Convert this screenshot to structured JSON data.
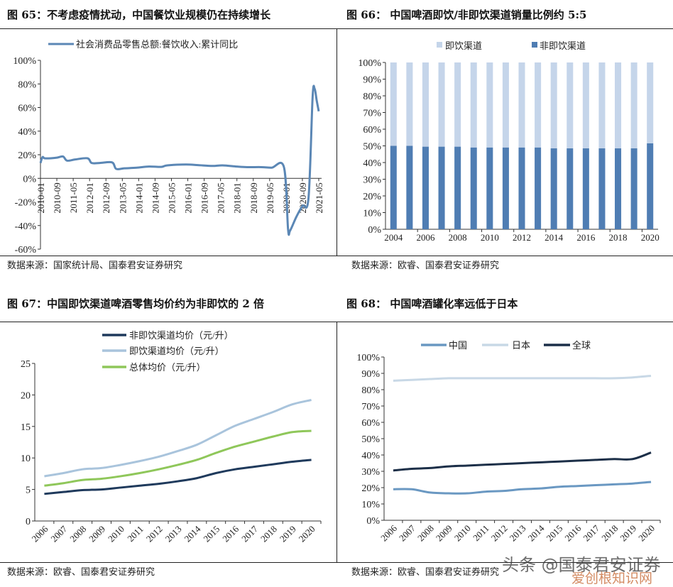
{
  "figures": [
    {
      "title": "图 65：不考虑疫情扰动，中国餐饮业规模仍在持续增长",
      "source": "数据来源：国家统计局、国泰君安证券研究"
    },
    {
      "title": "图 66：  中国啤酒即饮/非即饮渠道销量比例约 5:5",
      "source": "数据来源：欧睿、国泰君安证券研究"
    },
    {
      "title": "图 67：中国即饮渠道啤酒零售均价约为非即饮的 2 倍",
      "source": "数据来源：欧睿、国泰君安证券研究"
    },
    {
      "title": "图 68：  中国啤酒罐化率远低于日本",
      "source": "数据来源：欧睿、国泰君安证券研究"
    }
  ],
  "watermark": {
    "line1": "头条 @国泰君安证券",
    "line2": "爱创根知识网"
  },
  "chart_data": [
    {
      "type": "line",
      "ylabel": "",
      "xlabel": "",
      "ylim": [
        -60,
        100
      ],
      "yticks": [
        "100%",
        "80%",
        "60%",
        "40%",
        "20%",
        "0%",
        "-20%",
        "-40%",
        "-60%"
      ],
      "xticks": [
        "2010-01",
        "2010-09",
        "2011-05",
        "2012-01",
        "2012-09",
        "2013-05",
        "2014-01",
        "2014-09",
        "2015-05",
        "2016-01",
        "2016-09",
        "2017-05",
        "2018-01",
        "2018-09",
        "2019-05",
        "2020-01",
        "2020-09",
        "2021-05"
      ],
      "series": [
        {
          "name": "社会消费品零售总额:餐饮收入:累计同比",
          "color": "#5b87b5",
          "points": [
            [
              "2010-01",
              13
            ],
            [
              "2010-02",
              18
            ],
            [
              "2010-03",
              17
            ],
            [
              "2010-06",
              17
            ],
            [
              "2010-09",
              17.5
            ],
            [
              "2010-12",
              18.5
            ],
            [
              "2011-02",
              15
            ],
            [
              "2011-06",
              16
            ],
            [
              "2011-12",
              17
            ],
            [
              "2012-02",
              13
            ],
            [
              "2012-06",
              13
            ],
            [
              "2012-12",
              13.5
            ],
            [
              "2013-02",
              8
            ],
            [
              "2013-06",
              8.5
            ],
            [
              "2013-12",
              9
            ],
            [
              "2014-06",
              10
            ],
            [
              "2014-12",
              9.7
            ],
            [
              "2015-03",
              11
            ],
            [
              "2015-12",
              11.7
            ],
            [
              "2016-06",
              11.2
            ],
            [
              "2017-01",
              10.5
            ],
            [
              "2017-06",
              11
            ],
            [
              "2018-01",
              10
            ],
            [
              "2018-06",
              9.5
            ],
            [
              "2019-01",
              9.5
            ],
            [
              "2019-06",
              9
            ],
            [
              "2019-12",
              9.4
            ],
            [
              "2020-02",
              -43.1
            ],
            [
              "2020-03",
              -44.3
            ],
            [
              "2020-06",
              -32.8
            ],
            [
              "2020-09",
              -23.4
            ],
            [
              "2020-12",
              -16.6
            ],
            [
              "2021-02",
              68.9
            ],
            [
              "2021-03",
              75.9
            ],
            [
              "2021-04",
              65.9
            ],
            [
              "2021-05",
              56.8
            ]
          ]
        }
      ]
    },
    {
      "type": "bar",
      "stacked": true,
      "ylim": [
        0,
        100
      ],
      "yticks": [
        "100%",
        "90%",
        "80%",
        "70%",
        "60%",
        "50%",
        "40%",
        "30%",
        "20%",
        "10%",
        "0%"
      ],
      "categories": [
        "2004",
        "2005",
        "2006",
        "2007",
        "2008",
        "2009",
        "2010",
        "2011",
        "2012",
        "2013",
        "2014",
        "2015",
        "2016",
        "2017",
        "2018",
        "2019",
        "2020"
      ],
      "xtick_labels": [
        "2004",
        "2006",
        "2008",
        "2010",
        "2012",
        "2014",
        "2016",
        "2018",
        "2020"
      ],
      "series": [
        {
          "name": "非即饮渠道",
          "color": "#4f7db3",
          "values": [
            50,
            50,
            49.5,
            49.5,
            49.5,
            49,
            49,
            49,
            49,
            49,
            48.5,
            48.5,
            48.5,
            48.5,
            48.5,
            48.5,
            51.5
          ]
        },
        {
          "name": "即饮渠道",
          "color": "#c5d5ea",
          "values": [
            50,
            50,
            50.5,
            50.5,
            50.5,
            51,
            51,
            51,
            51,
            51,
            51.5,
            51.5,
            51.5,
            51.5,
            51.5,
            51.5,
            48.5
          ]
        }
      ],
      "legend_order": [
        "即饮渠道",
        "非即饮渠道"
      ]
    },
    {
      "type": "line",
      "ylim": [
        0,
        25
      ],
      "yticks": [
        "25",
        "20",
        "15",
        "10",
        "5",
        "0"
      ],
      "categories": [
        "2006",
        "2007",
        "2008",
        "2009",
        "2010",
        "2011",
        "2012",
        "2013",
        "2014",
        "2015",
        "2016",
        "2017",
        "2018",
        "2019",
        "2020"
      ],
      "series": [
        {
          "name": "非即饮渠道均价（元/升）",
          "color": "#1f3a5c",
          "values": [
            4.3,
            4.6,
            4.9,
            5.0,
            5.3,
            5.6,
            5.9,
            6.3,
            6.8,
            7.6,
            8.2,
            8.6,
            9.0,
            9.4,
            9.7
          ]
        },
        {
          "name": "即饮渠道均价（元/升）",
          "color": "#a9c4dc",
          "values": [
            7.1,
            7.6,
            8.2,
            8.4,
            8.9,
            9.5,
            10.2,
            11.1,
            12.1,
            13.6,
            15.1,
            16.2,
            17.3,
            18.5,
            19.2
          ]
        },
        {
          "name": "总体均价（元/升）",
          "color": "#8fc75a",
          "values": [
            5.6,
            6.0,
            6.5,
            6.7,
            7.1,
            7.6,
            8.2,
            8.9,
            9.7,
            10.8,
            11.8,
            12.6,
            13.4,
            14.1,
            14.3
          ]
        }
      ]
    },
    {
      "type": "line",
      "ylim": [
        0,
        100
      ],
      "yticks": [
        "100%",
        "90%",
        "80%",
        "70%",
        "60%",
        "50%",
        "40%",
        "30%",
        "20%",
        "10%",
        "0%"
      ],
      "categories": [
        "2006",
        "2007",
        "2008",
        "2009",
        "2010",
        "2011",
        "2012",
        "2013",
        "2014",
        "2015",
        "2016",
        "2017",
        "2018",
        "2019",
        "2020"
      ],
      "series": [
        {
          "name": "中国",
          "color": "#6a98c2",
          "values": [
            19,
            19,
            17,
            16.5,
            16.5,
            17.5,
            18,
            19,
            19.5,
            20.5,
            21,
            21.5,
            22,
            22.5,
            23.5
          ]
        },
        {
          "name": "日本",
          "color": "#c8d8e6",
          "values": [
            85.5,
            86,
            86.5,
            87,
            87,
            87,
            87,
            87,
            87,
            87,
            87,
            87,
            87,
            87.5,
            88.5
          ]
        },
        {
          "name": "全球",
          "color": "#1c2f48",
          "values": [
            30.5,
            31.5,
            32,
            33,
            33.5,
            34,
            34.5,
            35,
            35.5,
            36,
            36.5,
            37,
            37.5,
            37.5,
            41.5
          ]
        }
      ]
    }
  ]
}
